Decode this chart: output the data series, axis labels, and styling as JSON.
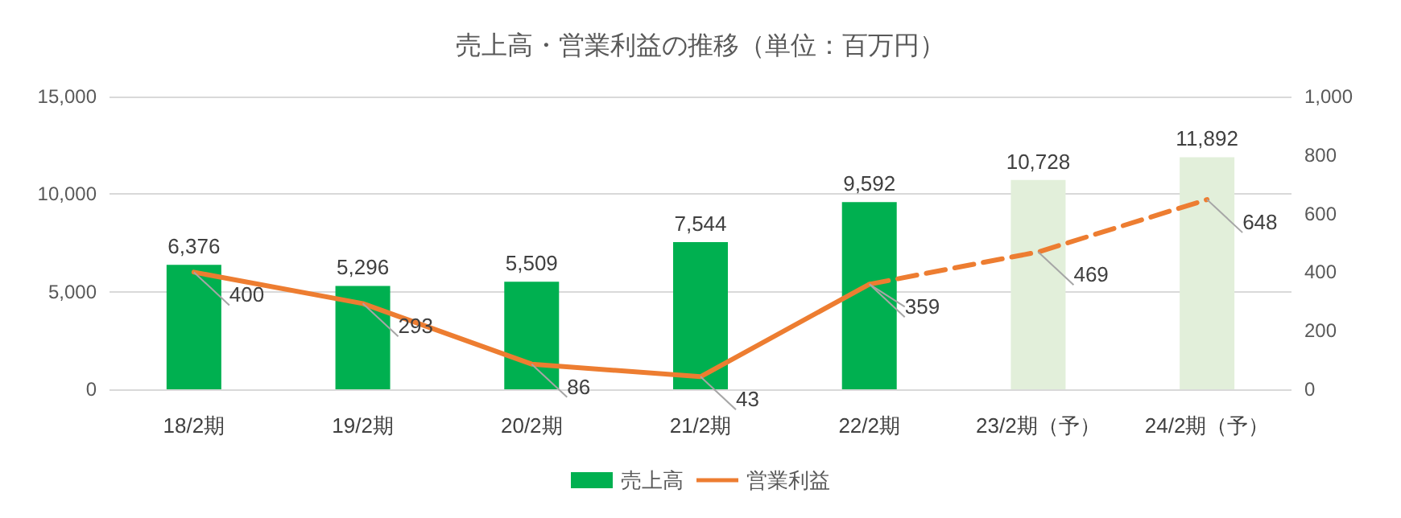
{
  "chart_data": {
    "type": "bar",
    "title": "売上高・営業利益の推移（単位：百万円）",
    "categories": [
      "18/2期",
      "19/2期",
      "20/2期",
      "21/2期",
      "22/2期",
      "23/2期（予）",
      "24/2期（予）"
    ],
    "series": [
      {
        "name": "売上高",
        "colors": [
          "#00b050",
          "#00b050",
          "#00b050",
          "#00b050",
          "#00b050",
          "#e2efda",
          "#e2efda"
        ],
        "values": [
          6376,
          5296,
          5509,
          7544,
          9592,
          10728,
          11892
        ],
        "value_labels": [
          "6,376",
          "5,296",
          "5,509",
          "7,544",
          "9,592",
          "10,728",
          "11,892"
        ]
      },
      {
        "name": "営業利益",
        "type": "line",
        "axis": "y2",
        "color": "#ed7d31",
        "line_style": "solid",
        "values": [
          400,
          293,
          86,
          43,
          359,
          null,
          null
        ]
      },
      {
        "type": "line",
        "axis": "y2",
        "color": "#ed7d31",
        "line_style": "dashed",
        "values": [
          null,
          null,
          null,
          null,
          359,
          469,
          648
        ],
        "value_labels": [
          null,
          null,
          null,
          null,
          null,
          "469",
          "648"
        ]
      }
    ],
    "ylim": [
      0,
      15000
    ],
    "yticks": [
      0,
      {
        "value": 5000,
        "label": "5,000"
      },
      {
        "value": 10000,
        "label": "10,000"
      },
      {
        "value": 15000,
        "label": "15,000"
      }
    ],
    "y2lim": [
      0,
      1000
    ],
    "y2ticks": [
      0,
      200,
      400,
      600,
      800,
      {
        "value": 1000,
        "label": "1,000"
      }
    ],
    "grid": "y",
    "legend": "bottom",
    "marker": "none",
    "data_labels": true
  }
}
